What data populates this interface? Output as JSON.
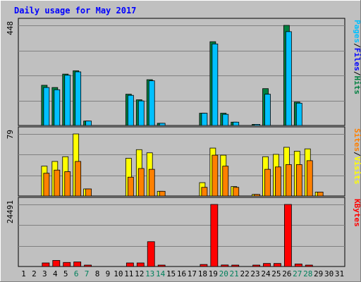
{
  "chart_data": {
    "type": "bar",
    "title": "Daily usage for May 2017",
    "categories": [
      "1",
      "2",
      "3",
      "4",
      "5",
      "6",
      "7",
      "8",
      "9",
      "10",
      "11",
      "12",
      "13",
      "14",
      "15",
      "16",
      "17",
      "18",
      "19",
      "20",
      "21",
      "22",
      "23",
      "24",
      "25",
      "26",
      "27",
      "28",
      "29",
      "30",
      "31"
    ],
    "weekend_days": [
      "6",
      "7",
      "13",
      "14",
      "20",
      "21",
      "27",
      "28"
    ],
    "panels": [
      {
        "id": "hits",
        "ymax_label": "448",
        "ymax": 448,
        "legend": [
          "Pages",
          "/",
          "Files",
          "/",
          "Hits"
        ],
        "series": [
          {
            "key": "hits",
            "color": "#008040",
            "values": [
              0,
              0,
              180,
              170,
              230,
              245,
              20,
              0,
              0,
              0,
              140,
              115,
              205,
              10,
              0,
              0,
              0,
              55,
              375,
              55,
              15,
              0,
              5,
              165,
              0,
              448,
              105,
              0,
              0,
              0,
              0
            ]
          },
          {
            "key": "files",
            "color": "#00C0FF",
            "values": [
              0,
              0,
              170,
              160,
              225,
              240,
              20,
              0,
              0,
              0,
              135,
              110,
              200,
              10,
              0,
              0,
              0,
              55,
              365,
              50,
              15,
              0,
              5,
              140,
              0,
              420,
              100,
              0,
              0,
              0,
              0
            ]
          },
          {
            "key": "pages",
            "color": "#00C0FF",
            "values": [
              0,
              0,
              0,
              0,
              0,
              0,
              0,
              0,
              0,
              0,
              0,
              0,
              0,
              0,
              0,
              0,
              0,
              0,
              0,
              0,
              0,
              0,
              0,
              0,
              0,
              0,
              0,
              0,
              0,
              0,
              0
            ]
          }
        ]
      },
      {
        "id": "visits",
        "ymax_label": "79",
        "ymax": 79,
        "legend": [
          "Sites",
          "/",
          "Visits"
        ],
        "series": [
          {
            "key": "visits",
            "color": "#FFFF00",
            "values": [
              0,
              0,
              38,
              44,
              50,
              79,
              9,
              0,
              0,
              0,
              48,
              59,
              55,
              6,
              0,
              0,
              0,
              17,
              61,
              52,
              12,
              0,
              2,
              50,
              53,
              62,
              57,
              60,
              5,
              0,
              0
            ]
          },
          {
            "key": "sites",
            "color": "#FF8000",
            "values": [
              0,
              0,
              29,
              33,
              31,
              44,
              9,
              0,
              0,
              0,
              24,
              35,
              34,
              6,
              0,
              0,
              0,
              11,
              52,
              38,
              11,
              0,
              2,
              34,
              37,
              40,
              40,
              45,
              5,
              0,
              0
            ]
          }
        ]
      },
      {
        "id": "kbytes",
        "ymax_label": "24491",
        "ymax": 24491,
        "legend": [
          "KBytes"
        ],
        "series": [
          {
            "key": "kbytes",
            "color": "#FF0000",
            "values": [
              0,
              0,
              1400,
              2400,
              1600,
              1800,
              200,
              0,
              0,
              0,
              1400,
              1400,
              9800,
              200,
              0,
              0,
              0,
              800,
              24491,
              600,
              300,
              0,
              200,
              1200,
              1200,
              24491,
              1000,
              300,
              0,
              0,
              0
            ]
          }
        ]
      }
    ],
    "grid": true,
    "colors": {
      "background": "#C0C0C0",
      "plot_bg": "#C0C0C0",
      "grid": "#808080",
      "title": "#0000FF",
      "weekday_label": "#000000",
      "weekend_label": "#00805C",
      "bar_outline": "#000000"
    }
  }
}
